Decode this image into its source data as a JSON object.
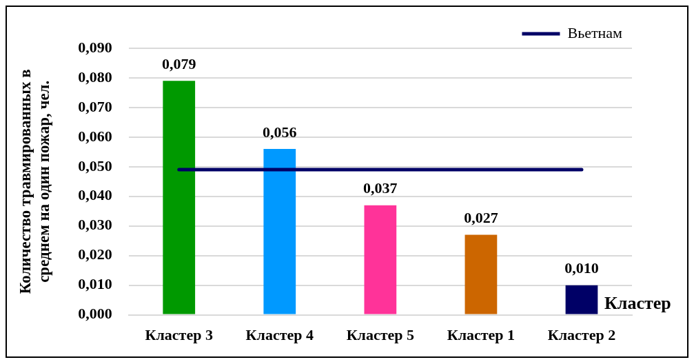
{
  "chart_data": {
    "type": "bar",
    "xlabel": "Кластер",
    "ylabel": "Количество травмированных в среднем на один пожар, чел.",
    "categories": [
      "Кластер 3",
      "Кластер 4",
      "Кластер 5",
      "Кластер 1",
      "Кластер 2"
    ],
    "series": [
      {
        "colors": [
          "#009900",
          "#0099ff",
          "#ff3399",
          "#cc6600",
          "#000066"
        ],
        "values": [
          0.079,
          0.056,
          0.037,
          0.027,
          0.01
        ],
        "value_labels": [
          "0,079",
          "0,056",
          "0,037",
          "0,027",
          "0,010"
        ]
      },
      {
        "type": "line",
        "name": "Вьетнам",
        "color": "#000066",
        "values": [
          0.049,
          0.049,
          0.049,
          0.049,
          0.049
        ]
      }
    ],
    "ylim": [
      0,
      0.09
    ],
    "yticks": [
      {
        "value": 0,
        "label": "0,000"
      },
      {
        "value": 0.01,
        "label": "0,010"
      },
      {
        "value": 0.02,
        "label": "0,020"
      },
      {
        "value": 0.03,
        "label": "0,030"
      },
      {
        "value": 0.04,
        "label": "0,040"
      },
      {
        "value": 0.05,
        "label": "0,050"
      },
      {
        "value": 0.06,
        "label": "0,060"
      },
      {
        "value": 0.07,
        "label": "0,070"
      },
      {
        "value": 0.08,
        "label": "0,080"
      },
      {
        "value": 0.09,
        "label": "0,090"
      }
    ],
    "grid": "y",
    "legend": "top right",
    "marker": "none",
    "line_style": "solid"
  }
}
